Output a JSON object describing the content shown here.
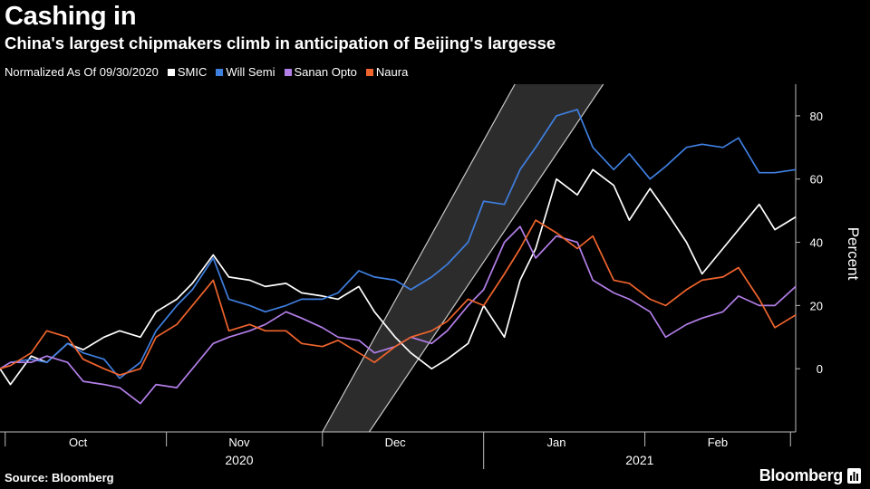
{
  "title": "Cashing in",
  "subtitle": "China's largest chipmakers climb in anticipation of Beijing's largesse",
  "legend_note": "Normalized As Of 09/30/2020",
  "source": "Source: Bloomberg",
  "brand": "Bloomberg",
  "chart_data": {
    "type": "line",
    "title": "Cashing in",
    "subtitle": "China's largest chipmakers climb in anticipation of Beijing's largesse",
    "ylabel": "Percent",
    "ylim": [
      -20,
      90
    ],
    "y_ticks": [
      0,
      20,
      40,
      60,
      80
    ],
    "month_labels": [
      {
        "label": "Oct",
        "x": "2020-10-15"
      },
      {
        "label": "Nov",
        "x": "2020-11-15"
      },
      {
        "label": "Dec",
        "x": "2020-12-15"
      },
      {
        "label": "Jan",
        "x": "2021-01-15"
      },
      {
        "label": "Feb",
        "x": "2021-02-15"
      }
    ],
    "year_labels": [
      {
        "label": "2020",
        "x": "2020-11-15"
      },
      {
        "label": "2021",
        "x": "2021-01-31"
      }
    ],
    "xlim": [
      "2020-09-30",
      "2021-03-02"
    ],
    "grid": false,
    "legend_position": "top-left",
    "highlight_band": {
      "x0_bottom": "2020-12-01",
      "x1_bottom": "2020-12-10",
      "y_bottom": -20,
      "x0_top": "2021-01-07",
      "x1_top": "2021-01-24",
      "y_top": 90
    },
    "series": [
      {
        "name": "SMIC",
        "color": "#ffffff",
        "points": [
          [
            "2020-09-30",
            0
          ],
          [
            "2020-10-02",
            -5
          ],
          [
            "2020-10-06",
            4
          ],
          [
            "2020-10-09",
            2
          ],
          [
            "2020-10-13",
            8
          ],
          [
            "2020-10-16",
            6
          ],
          [
            "2020-10-20",
            10
          ],
          [
            "2020-10-23",
            12
          ],
          [
            "2020-10-27",
            10
          ],
          [
            "2020-10-30",
            18
          ],
          [
            "2020-11-03",
            22
          ],
          [
            "2020-11-06",
            27
          ],
          [
            "2020-11-10",
            36
          ],
          [
            "2020-11-13",
            29
          ],
          [
            "2020-11-17",
            28
          ],
          [
            "2020-11-20",
            26
          ],
          [
            "2020-11-24",
            27
          ],
          [
            "2020-11-27",
            24
          ],
          [
            "2020-12-01",
            23
          ],
          [
            "2020-12-04",
            22
          ],
          [
            "2020-12-08",
            26
          ],
          [
            "2020-12-11",
            18
          ],
          [
            "2020-12-15",
            10
          ],
          [
            "2020-12-18",
            5
          ],
          [
            "2020-12-22",
            0
          ],
          [
            "2020-12-25",
            3
          ],
          [
            "2020-12-29",
            8
          ],
          [
            "2021-01-01",
            20
          ],
          [
            "2021-01-05",
            10
          ],
          [
            "2021-01-08",
            28
          ],
          [
            "2021-01-11",
            38
          ],
          [
            "2021-01-15",
            60
          ],
          [
            "2021-01-19",
            55
          ],
          [
            "2021-01-22",
            63
          ],
          [
            "2021-01-26",
            58
          ],
          [
            "2021-01-29",
            47
          ],
          [
            "2021-02-02",
            57
          ],
          [
            "2021-02-05",
            50
          ],
          [
            "2021-02-09",
            40
          ],
          [
            "2021-02-12",
            30
          ],
          [
            "2021-02-16",
            38
          ],
          [
            "2021-02-19",
            44
          ],
          [
            "2021-02-23",
            52
          ],
          [
            "2021-02-26",
            44
          ],
          [
            "2021-03-02",
            48
          ]
        ]
      },
      {
        "name": "Will Semi",
        "color": "#3f7fe0",
        "points": [
          [
            "2020-09-30",
            0
          ],
          [
            "2020-10-02",
            2
          ],
          [
            "2020-10-06",
            3
          ],
          [
            "2020-10-09",
            2
          ],
          [
            "2020-10-13",
            8
          ],
          [
            "2020-10-16",
            5
          ],
          [
            "2020-10-20",
            3
          ],
          [
            "2020-10-23",
            -3
          ],
          [
            "2020-10-27",
            2
          ],
          [
            "2020-10-30",
            12
          ],
          [
            "2020-11-03",
            20
          ],
          [
            "2020-11-06",
            25
          ],
          [
            "2020-11-10",
            35
          ],
          [
            "2020-11-13",
            22
          ],
          [
            "2020-11-17",
            20
          ],
          [
            "2020-11-20",
            18
          ],
          [
            "2020-11-24",
            20
          ],
          [
            "2020-11-27",
            22
          ],
          [
            "2020-12-01",
            22
          ],
          [
            "2020-12-04",
            24
          ],
          [
            "2020-12-08",
            31
          ],
          [
            "2020-12-11",
            29
          ],
          [
            "2020-12-15",
            28
          ],
          [
            "2020-12-18",
            25
          ],
          [
            "2020-12-22",
            29
          ],
          [
            "2020-12-25",
            33
          ],
          [
            "2020-12-29",
            40
          ],
          [
            "2021-01-01",
            53
          ],
          [
            "2021-01-05",
            52
          ],
          [
            "2021-01-08",
            63
          ],
          [
            "2021-01-11",
            70
          ],
          [
            "2021-01-15",
            80
          ],
          [
            "2021-01-19",
            82
          ],
          [
            "2021-01-22",
            70
          ],
          [
            "2021-01-26",
            63
          ],
          [
            "2021-01-29",
            68
          ],
          [
            "2021-02-02",
            60
          ],
          [
            "2021-02-05",
            64
          ],
          [
            "2021-02-09",
            70
          ],
          [
            "2021-02-12",
            71
          ],
          [
            "2021-02-16",
            70
          ],
          [
            "2021-02-19",
            73
          ],
          [
            "2021-02-23",
            62
          ],
          [
            "2021-02-26",
            62
          ],
          [
            "2021-03-02",
            63
          ]
        ]
      },
      {
        "name": "Sanan Opto",
        "color": "#b27ee8",
        "points": [
          [
            "2020-09-30",
            0
          ],
          [
            "2020-10-02",
            2
          ],
          [
            "2020-10-06",
            2
          ],
          [
            "2020-10-09",
            4
          ],
          [
            "2020-10-13",
            2
          ],
          [
            "2020-10-16",
            -4
          ],
          [
            "2020-10-20",
            -5
          ],
          [
            "2020-10-23",
            -6
          ],
          [
            "2020-10-27",
            -11
          ],
          [
            "2020-10-30",
            -5
          ],
          [
            "2020-11-03",
            -6
          ],
          [
            "2020-11-06",
            0
          ],
          [
            "2020-11-10",
            8
          ],
          [
            "2020-11-13",
            10
          ],
          [
            "2020-11-17",
            12
          ],
          [
            "2020-11-20",
            14
          ],
          [
            "2020-11-24",
            18
          ],
          [
            "2020-11-27",
            16
          ],
          [
            "2020-12-01",
            13
          ],
          [
            "2020-12-04",
            10
          ],
          [
            "2020-12-08",
            9
          ],
          [
            "2020-12-11",
            5
          ],
          [
            "2020-12-15",
            7
          ],
          [
            "2020-12-18",
            10
          ],
          [
            "2020-12-22",
            8
          ],
          [
            "2020-12-25",
            12
          ],
          [
            "2020-12-29",
            20
          ],
          [
            "2021-01-01",
            25
          ],
          [
            "2021-01-05",
            40
          ],
          [
            "2021-01-08",
            45
          ],
          [
            "2021-01-11",
            35
          ],
          [
            "2021-01-15",
            42
          ],
          [
            "2021-01-19",
            40
          ],
          [
            "2021-01-22",
            28
          ],
          [
            "2021-01-26",
            24
          ],
          [
            "2021-01-29",
            22
          ],
          [
            "2021-02-02",
            18
          ],
          [
            "2021-02-05",
            10
          ],
          [
            "2021-02-09",
            14
          ],
          [
            "2021-02-12",
            16
          ],
          [
            "2021-02-16",
            18
          ],
          [
            "2021-02-19",
            23
          ],
          [
            "2021-02-23",
            20
          ],
          [
            "2021-02-26",
            20
          ],
          [
            "2021-03-02",
            26
          ]
        ]
      },
      {
        "name": "Naura",
        "color": "#f0642d",
        "points": [
          [
            "2020-09-30",
            0
          ],
          [
            "2020-10-02",
            1
          ],
          [
            "2020-10-06",
            5
          ],
          [
            "2020-10-09",
            12
          ],
          [
            "2020-10-13",
            10
          ],
          [
            "2020-10-16",
            3
          ],
          [
            "2020-10-20",
            0
          ],
          [
            "2020-10-23",
            -2
          ],
          [
            "2020-10-27",
            0
          ],
          [
            "2020-10-30",
            10
          ],
          [
            "2020-11-03",
            14
          ],
          [
            "2020-11-06",
            20
          ],
          [
            "2020-11-10",
            28
          ],
          [
            "2020-11-13",
            12
          ],
          [
            "2020-11-17",
            14
          ],
          [
            "2020-11-20",
            12
          ],
          [
            "2020-11-24",
            12
          ],
          [
            "2020-11-27",
            8
          ],
          [
            "2020-12-01",
            7
          ],
          [
            "2020-12-04",
            9
          ],
          [
            "2020-12-08",
            5
          ],
          [
            "2020-12-11",
            2
          ],
          [
            "2020-12-15",
            7
          ],
          [
            "2020-12-18",
            10
          ],
          [
            "2020-12-22",
            12
          ],
          [
            "2020-12-25",
            15
          ],
          [
            "2020-12-29",
            22
          ],
          [
            "2021-01-01",
            20
          ],
          [
            "2021-01-05",
            30
          ],
          [
            "2021-01-08",
            38
          ],
          [
            "2021-01-11",
            47
          ],
          [
            "2021-01-15",
            43
          ],
          [
            "2021-01-19",
            38
          ],
          [
            "2021-01-22",
            42
          ],
          [
            "2021-01-26",
            28
          ],
          [
            "2021-01-29",
            27
          ],
          [
            "2021-02-02",
            22
          ],
          [
            "2021-02-05",
            20
          ],
          [
            "2021-02-09",
            25
          ],
          [
            "2021-02-12",
            28
          ],
          [
            "2021-02-16",
            29
          ],
          [
            "2021-02-19",
            32
          ],
          [
            "2021-02-23",
            22
          ],
          [
            "2021-02-26",
            13
          ],
          [
            "2021-03-02",
            17
          ]
        ]
      }
    ]
  }
}
